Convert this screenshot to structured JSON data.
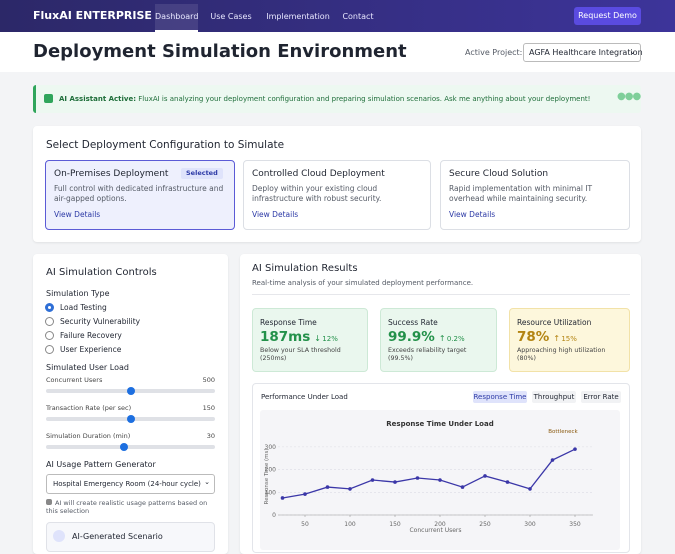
{
  "nav": {
    "brand": "FluxAI ENTERPRISE",
    "links": [
      "Dashboard",
      "Use Cases",
      "Implementation",
      "Contact"
    ],
    "active": 0,
    "cta": "Request Demo"
  },
  "header": {
    "title": "Deployment Simulation Environment",
    "project_label": "Active Project:",
    "project": "AGFA Healthcare Integration"
  },
  "assistant": {
    "label": "AI Assistant Active:",
    "message": "FluxAI is analyzing your deployment configuration and preparing simulation scenarios. Ask me anything about your deployment!"
  },
  "config": {
    "title": "Select Deployment Configuration to Simulate",
    "selected": 0,
    "badge": "Selected",
    "cards": [
      {
        "title": "On-Premises Deployment",
        "description": "Full control with dedicated infrastructure and air-gapped options.",
        "link": "View Details"
      },
      {
        "title": "Controlled Cloud Deployment",
        "description": "Deploy within your existing cloud infrastructure with robust security.",
        "link": "View Details"
      },
      {
        "title": "Secure Cloud Solution",
        "description": "Rapid implementation with minimal IT overhead while maintaining security.",
        "link": "View Details"
      }
    ]
  },
  "controls": {
    "title": "AI Simulation Controls",
    "type_label": "Simulation Type",
    "types": [
      "Load Testing",
      "Security Vulnerability",
      "Failure Recovery",
      "User Experience"
    ],
    "selected_type": 0,
    "load_label": "Simulated User Load",
    "sliders": [
      {
        "label": "Concurrent Users",
        "value": 500,
        "min": 0,
        "max": 1000
      },
      {
        "label": "Transaction Rate (per sec)",
        "value": 150,
        "min": 0,
        "max": 300
      },
      {
        "label": "Simulation Duration (min)",
        "value": 30,
        "min": 0,
        "max": 65
      }
    ],
    "pattern_label": "AI Usage Pattern Generator",
    "pattern": "Hospital Emergency Room (24-hour cycle)",
    "pattern_note": "AI will create realistic usage patterns based on this selection",
    "scenario": "AI-Generated Scenario"
  },
  "results": {
    "title": "AI Simulation Results",
    "subtitle": "Real-time analysis of your simulated deployment performance.",
    "metrics": [
      {
        "label": "Response Time",
        "value": "187ms",
        "change": "12%",
        "note": "Below your SLA threshold (250ms)"
      },
      {
        "label": "Success Rate",
        "value": "99.9%",
        "change": "0.2%",
        "note": "Exceeds reliability target (99.5%)"
      },
      {
        "label": "Resource Utilization",
        "value": "78%",
        "change": "15%",
        "note": "Approaching high utilization (80%)"
      }
    ],
    "panel_title": "Performance Under Load",
    "tabs": [
      "Response Time",
      "Throughput",
      "Error Rate"
    ],
    "active_tab": 0
  },
  "chart_data": {
    "type": "line",
    "title": "Response Time Under Load",
    "x_label": "Concurrent Users",
    "y_label": "Response Time (ms)",
    "annotation": "Bottleneck",
    "x": [
      25,
      50,
      75,
      100,
      125,
      150,
      175,
      200,
      225,
      250,
      275,
      300,
      325,
      350
    ],
    "series": [
      {
        "name": "Response Time",
        "color": "#3b37a8",
        "values": [
          75,
          92,
          123,
          115,
          154,
          145,
          163,
          154,
          123,
          172,
          145,
          115,
          242,
          290
        ]
      }
    ],
    "xlim": [
      20,
      370
    ],
    "xticks": [
      50,
      100,
      150,
      200,
      250,
      300,
      350
    ],
    "ylim": [
      0,
      340
    ],
    "yticks": [
      0,
      100,
      200,
      300
    ],
    "grid": true
  }
}
